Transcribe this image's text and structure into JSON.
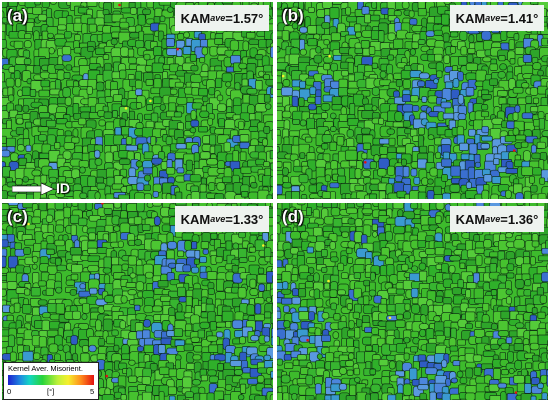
{
  "panels": [
    {
      "id": "a",
      "letter": "(a)",
      "kam_prefix": "KAM",
      "kam_sub": "ave",
      "kam_value": "=1.57°",
      "blue_fraction": 0.1
    },
    {
      "id": "b",
      "letter": "(b)",
      "kam_prefix": "KAM",
      "kam_sub": "ave",
      "kam_value": "=1.41°",
      "blue_fraction": 0.3
    },
    {
      "id": "c",
      "letter": "(c)",
      "kam_prefix": "KAM",
      "kam_sub": "ave",
      "kam_value": "=1.33°",
      "blue_fraction": 0.22
    },
    {
      "id": "d",
      "letter": "(d)",
      "kam_prefix": "KAM",
      "kam_sub": "ave",
      "kam_value": "=1.36°",
      "blue_fraction": 0.25
    }
  ],
  "direction": {
    "label": "ID"
  },
  "legend": {
    "title": "Kernel Aver. Misorient.",
    "min": "0",
    "unit": "[°]",
    "max": "5",
    "colors": [
      "#1d1fd0",
      "#1f8fe0",
      "#13d6c4",
      "#27d43a",
      "#bff03a",
      "#f5ef2d",
      "#ff8b1c",
      "#e31010"
    ]
  },
  "colors": {
    "grain_green": "#3dbb2c",
    "grain_boundary": "#0b2410",
    "low_kam_blue": "#3a6fd0"
  }
}
